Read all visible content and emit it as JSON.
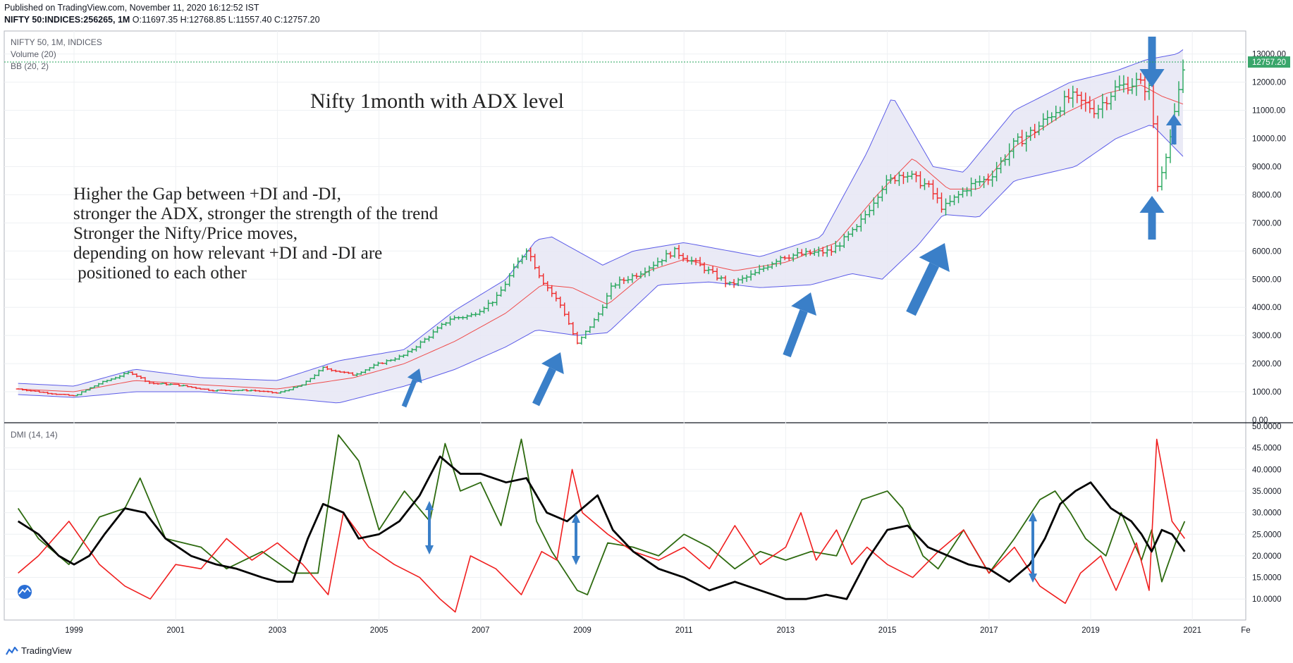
{
  "header": {
    "published": "Published on TradingView.com, November 11, 2020 16:12:52 IST",
    "symbol": "NIFTY 50:INDICES:256265, 1M",
    "ohlc": "O:11697.35 H:12768.85 L:11557.40 C:12757.20"
  },
  "legend": {
    "title": "NIFTY 50, 1M, INDICES",
    "volume": "Volume (20)",
    "bb": "BB (20, 2)",
    "dmi": "DMI (14, 14)"
  },
  "annotations": {
    "title": "Nifty 1month with ADX level",
    "note": [
      "Higher the Gap between +DI and -DI,",
      "stronger the ADX, stronger the strength of the trend",
      "Stronger the Nifty/Price moves,",
      "depending on how relevant +DI and -DI are",
      " positioned to each other"
    ]
  },
  "price_axis": [
    "13000.00",
    "12000.00",
    "11000.00",
    "10000.00",
    "9000.00",
    "8000.00",
    "7000.00",
    "6000.00",
    "5000.00",
    "4000.00",
    "3000.00",
    "2000.00",
    "1000.00",
    "0.00"
  ],
  "last_price": "12757.20",
  "dmi_axis": [
    "50.0000",
    "45.0000",
    "40.0000",
    "35.0000",
    "30.0000",
    "25.0000",
    "20.0000",
    "15.0000",
    "10.0000"
  ],
  "time_axis": [
    "1999",
    "2001",
    "2003",
    "2005",
    "2007",
    "2009",
    "2011",
    "2013",
    "2015",
    "2017",
    "2019",
    "2021",
    "Fe"
  ],
  "brand": "TradingView",
  "colors": {
    "up": "#26a65b",
    "down": "#ef2b2b",
    "bb_fill": "#e6e6f5",
    "bb_line": "#5b5be8",
    "basis": "#ef4b4b",
    "plus_di": "#2d6a0f",
    "minus_di": "#f01e1e",
    "adx": "#000000",
    "arrow": "#3a7fc8"
  },
  "chart_data": [
    {
      "type": "candlestick",
      "title": "NIFTY 50, 1M, INDICES",
      "ylim": [
        0,
        13500
      ],
      "series": [
        {
          "name": "Price (approx. close)",
          "x": [
            1997.9,
            1998.5,
            1999.0,
            1999.5,
            2000.1,
            2000.5,
            2001.0,
            2001.7,
            2002.5,
            2003.0,
            2003.5,
            2003.9,
            2004.5,
            2005.0,
            2005.5,
            2006.0,
            2006.4,
            2006.8,
            2007.3,
            2007.9,
            2008.2,
            2008.6,
            2008.9,
            2009.3,
            2009.6,
            2010.1,
            2010.8,
            2011.3,
            2011.9,
            2012.4,
            2012.9,
            2013.4,
            2013.9,
            2014.4,
            2014.9,
            2015.3,
            2015.8,
            2016.1,
            2016.6,
            2017.0,
            2017.5,
            2017.9,
            2018.6,
            2019.1,
            2019.5,
            2019.9,
            2020.2,
            2020.3,
            2020.6,
            2020.85
          ],
          "values": [
            1100,
            950,
            850,
            1300,
            1700,
            1300,
            1250,
            1050,
            1050,
            950,
            1250,
            1850,
            1600,
            2000,
            2300,
            3000,
            3600,
            3700,
            4300,
            6100,
            5000,
            4000,
            2700,
            3700,
            4800,
            5200,
            6000,
            5500,
            4800,
            5200,
            5800,
            5900,
            6000,
            6800,
            8300,
            8800,
            8300,
            7500,
            8300,
            8600,
            9800,
            10300,
            11500,
            11000,
            11800,
            12000,
            11700,
            8200,
            10300,
            12757.2
          ]
        },
        {
          "name": "BB upper",
          "x": [
            1997.9,
            1999.0,
            2000.2,
            2001.5,
            2003.0,
            2004.2,
            2005.5,
            2006.5,
            2007.5,
            2008.1,
            2008.4,
            2009.4,
            2010.0,
            2011.0,
            2012.5,
            2013.7,
            2014.6,
            2015.1,
            2015.9,
            2016.5,
            2017.5,
            2018.6,
            2019.5,
            2020.1,
            2020.7,
            2020.85
          ],
          "values": [
            1300,
            1200,
            1800,
            1500,
            1400,
            2100,
            2500,
            3900,
            5000,
            6400,
            6500,
            5500,
            6000,
            6300,
            5800,
            6500,
            9500,
            11500,
            9000,
            8800,
            11000,
            12000,
            12400,
            12800,
            13000,
            13200
          ]
        },
        {
          "name": "BB lower",
          "x": [
            1997.9,
            1999.0,
            2000.2,
            2001.5,
            2003.0,
            2004.2,
            2005.5,
            2006.5,
            2007.5,
            2008.1,
            2008.9,
            2009.5,
            2010.5,
            2011.5,
            2012.5,
            2013.5,
            2014.3,
            2014.9,
            2015.6,
            2016.1,
            2016.8,
            2017.5,
            2018.7,
            2019.5,
            2020.2,
            2020.85
          ],
          "values": [
            900,
            800,
            1000,
            1000,
            800,
            600,
            1200,
            1800,
            2600,
            3200,
            3000,
            3100,
            4800,
            4900,
            4700,
            4800,
            5200,
            5000,
            6200,
            7300,
            7200,
            8500,
            9000,
            10000,
            10500,
            9300
          ]
        },
        {
          "name": "BB basis",
          "x": [
            1997.9,
            1999.0,
            2000.2,
            2001.5,
            2003.0,
            2004.5,
            2005.5,
            2006.5,
            2007.5,
            2008.2,
            2008.8,
            2009.5,
            2010.3,
            2011.0,
            2012.0,
            2013.0,
            2014.0,
            2014.8,
            2015.5,
            2016.2,
            2016.8,
            2017.5,
            2018.5,
            2019.3,
            2020.0,
            2020.4,
            2020.85
          ],
          "values": [
            1100,
            1000,
            1400,
            1250,
            1100,
            1500,
            2000,
            2800,
            3800,
            4800,
            4700,
            4100,
            5300,
            5700,
            5300,
            5600,
            6300,
            8000,
            9300,
            8200,
            8200,
            9700,
            10900,
            11600,
            11900,
            11500,
            11200
          ]
        }
      ]
    },
    {
      "type": "line",
      "title": "DMI (14, 14)",
      "ylim": [
        7,
        50
      ],
      "series": [
        {
          "name": "+DI",
          "x": [
            1997.9,
            1998.3,
            1998.9,
            1999.5,
            2000.0,
            2000.3,
            2000.8,
            2001.5,
            2002.0,
            2002.7,
            2003.3,
            2003.8,
            2004.2,
            2004.6,
            2005.0,
            2005.5,
            2006.0,
            2006.3,
            2006.6,
            2007.0,
            2007.4,
            2007.8,
            2008.1,
            2008.4,
            2008.9,
            2009.1,
            2009.5,
            2010.0,
            2010.5,
            2011.0,
            2011.5,
            2012.0,
            2012.5,
            2013.0,
            2013.5,
            2014.0,
            2014.5,
            2015.0,
            2015.3,
            2015.7,
            2016.0,
            2016.5,
            2017.0,
            2017.5,
            2018.0,
            2018.3,
            2018.6,
            2018.9,
            2019.3,
            2019.6,
            2020.0,
            2020.2,
            2020.4,
            2020.7,
            2020.85
          ],
          "values": [
            31,
            24,
            18,
            29,
            31,
            38,
            24,
            22,
            17,
            21,
            16,
            16,
            48,
            42,
            26,
            35,
            28,
            46,
            35,
            37,
            27,
            47,
            28,
            21,
            12,
            11,
            23,
            22,
            20,
            25,
            22,
            17,
            21,
            19,
            21,
            20,
            33,
            35,
            31,
            20,
            17,
            26,
            16,
            24,
            33,
            35,
            30,
            24,
            20,
            30,
            19,
            26,
            14,
            24,
            28
          ]
        },
        {
          "name": "-DI",
          "x": [
            1997.9,
            1998.3,
            1998.9,
            1999.5,
            2000.0,
            2000.5,
            2001.0,
            2001.5,
            2002.0,
            2002.5,
            2003.0,
            2003.5,
            2004.0,
            2004.3,
            2004.8,
            2005.3,
            2005.8,
            2006.2,
            2006.5,
            2006.8,
            2007.3,
            2007.8,
            2008.2,
            2008.5,
            2008.8,
            2009.0,
            2009.5,
            2010.0,
            2010.5,
            2011.0,
            2011.5,
            2012.0,
            2012.5,
            2013.0,
            2013.3,
            2013.6,
            2014.0,
            2014.3,
            2014.6,
            2015.0,
            2015.5,
            2016.0,
            2016.5,
            2017.0,
            2017.5,
            2018.0,
            2018.5,
            2018.8,
            2019.2,
            2019.5,
            2019.9,
            2020.15,
            2020.3,
            2020.6,
            2020.85
          ],
          "values": [
            16,
            20,
            28,
            18,
            13,
            10,
            18,
            17,
            24,
            19,
            23,
            18,
            11,
            30,
            22,
            18,
            15,
            10,
            7,
            20,
            17,
            11,
            21,
            19,
            40,
            30,
            25,
            21,
            19,
            22,
            17,
            27,
            18,
            22,
            30,
            19,
            26,
            18,
            22,
            18,
            15,
            21,
            26,
            16,
            22,
            13,
            9,
            16,
            20,
            12,
            23,
            12,
            47,
            28,
            24
          ]
        },
        {
          "name": "ADX",
          "x": [
            1997.9,
            1998.3,
            1998.7,
            1999.0,
            1999.3,
            1999.6,
            2000.0,
            2000.4,
            2000.8,
            2001.3,
            2001.8,
            2002.2,
            2002.7,
            2003.0,
            2003.3,
            2003.6,
            2003.9,
            2004.3,
            2004.6,
            2005.0,
            2005.4,
            2005.8,
            2006.2,
            2006.6,
            2007.0,
            2007.5,
            2007.9,
            2008.3,
            2008.7,
            2009.0,
            2009.3,
            2009.6,
            2010.0,
            2010.5,
            2011.0,
            2011.5,
            2012.0,
            2012.5,
            2013.0,
            2013.4,
            2013.8,
            2014.2,
            2014.6,
            2015.0,
            2015.4,
            2015.8,
            2016.2,
            2016.6,
            2017.0,
            2017.4,
            2017.8,
            2018.1,
            2018.4,
            2018.7,
            2019.0,
            2019.4,
            2019.8,
            2020.0,
            2020.2,
            2020.4,
            2020.6,
            2020.85
          ],
          "values": [
            28,
            25,
            20,
            18,
            20,
            25,
            31,
            30,
            24,
            20,
            18,
            17,
            15,
            14,
            14,
            24,
            32,
            30,
            24,
            25,
            28,
            34,
            43,
            39,
            39,
            37,
            38,
            30,
            28,
            31,
            34,
            26,
            21,
            17,
            15,
            12,
            14,
            12,
            10,
            10,
            11,
            10,
            19,
            26,
            27,
            22,
            20,
            18,
            17,
            14,
            18,
            24,
            32,
            35,
            37,
            31,
            28,
            25,
            21,
            26,
            25,
            21
          ]
        }
      ]
    }
  ]
}
